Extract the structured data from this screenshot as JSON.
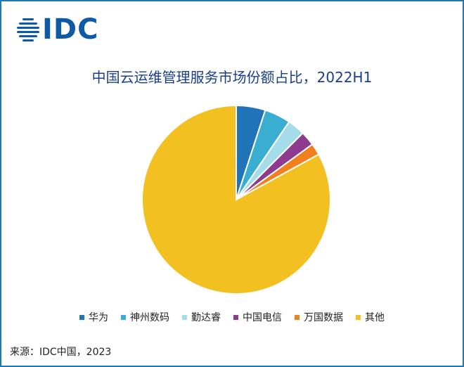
{
  "logo": {
    "text": "IDC",
    "color": "#0d5aa7"
  },
  "chart_data": {
    "type": "pie",
    "title": "中国云运维管理服务市场份额占比，2022H1",
    "series": [
      {
        "name": "华为",
        "value": 5.0,
        "color": "#2173b8"
      },
      {
        "name": "神州数码",
        "value": 4.5,
        "color": "#3aaed0"
      },
      {
        "name": "勤达睿",
        "value": 3.0,
        "color": "#a5dce9"
      },
      {
        "name": "中国电信",
        "value": 2.5,
        "color": "#8e3a8e"
      },
      {
        "name": "万国数据",
        "value": 2.0,
        "color": "#f07f1c"
      },
      {
        "name": "其他",
        "value": 83.0,
        "color": "#f2c021"
      }
    ],
    "legend_position": "bottom"
  },
  "source": "来源：IDC中国，2023"
}
